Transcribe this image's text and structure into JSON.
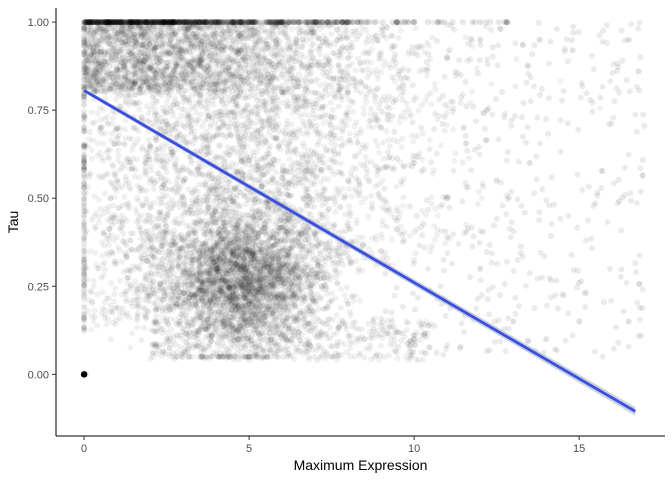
{
  "chart_data": {
    "type": "scatter",
    "title": "",
    "xlabel": "Maximum Expression",
    "ylabel": "Tau",
    "xlim": [
      -0.85,
      17.6
    ],
    "ylim": [
      -0.175,
      1.04
    ],
    "x_ticks": [
      0,
      5,
      10,
      15
    ],
    "x_tick_labels": [
      "0",
      "5",
      "10",
      "15"
    ],
    "y_ticks": [
      0,
      0.25,
      0.5,
      0.75,
      1
    ],
    "y_tick_labels": [
      "0.00",
      "0.25",
      "0.50",
      "0.75",
      "1.00"
    ],
    "grid": false,
    "legend": "none",
    "point_color": "#000000",
    "point_alpha": 0.06,
    "series": [
      {
        "points": [
          [
            0,
            1.0
          ],
          [
            0.2,
            1.0
          ],
          [
            0.5,
            1.0
          ],
          [
            1.0,
            1.0
          ],
          [
            2.0,
            1.0
          ],
          [
            3.0,
            1.0
          ],
          [
            4.5,
            1.0
          ],
          [
            6.0,
            1.0
          ],
          [
            8.0,
            1.0
          ],
          [
            10.0,
            1.0
          ],
          [
            12.0,
            1.0
          ],
          [
            12.8,
            1.0
          ],
          [
            0,
            0
          ],
          [
            0.05,
            0
          ],
          [
            0.3,
            0.8
          ],
          [
            1.0,
            0.85
          ],
          [
            2.5,
            0.8
          ],
          [
            4.0,
            0.8
          ],
          [
            6.0,
            0.8
          ],
          [
            8.0,
            0.8
          ],
          [
            4.5,
            0.25
          ],
          [
            5.0,
            0.2
          ],
          [
            5.5,
            0.15
          ],
          [
            4.0,
            0.3
          ],
          [
            3.5,
            0.35
          ],
          [
            6.0,
            0.22
          ],
          [
            5.0,
            0.35
          ],
          [
            4.2,
            0.15
          ],
          [
            2.5,
            0.4
          ],
          [
            3.0,
            0.55
          ],
          [
            2.0,
            0.65
          ],
          [
            1.5,
            0.7
          ],
          [
            7.0,
            0.4
          ],
          [
            8.0,
            0.55
          ],
          [
            9.0,
            0.7
          ],
          [
            10.0,
            0.6
          ],
          [
            11.0,
            0.5
          ],
          [
            12.0,
            0.3
          ],
          [
            13.0,
            0.15
          ],
          [
            14.0,
            0.1
          ],
          [
            15.0,
            0.15
          ],
          [
            16.5,
            0.15
          ],
          [
            16.8,
            0.86
          ],
          [
            16.5,
            0.95
          ],
          [
            14.8,
            0.92
          ],
          [
            13.8,
            0.95
          ],
          [
            11.5,
            0.7
          ],
          [
            12.5,
            0.55
          ],
          [
            9.5,
            0.12
          ],
          [
            10.0,
            0.1
          ],
          [
            7.5,
            0.08
          ],
          [
            8.5,
            0.1
          ],
          [
            1.0,
            0.55
          ],
          [
            0.5,
            0.7
          ],
          [
            0.8,
            0.5
          ],
          [
            3.2,
            0.12
          ],
          [
            2.8,
            0.2
          ],
          [
            6.5,
            0.12
          ],
          [
            7.2,
            0.25
          ],
          [
            12.2,
            0.75
          ],
          [
            13.5,
            0.6
          ],
          [
            9.0,
            0.35
          ],
          [
            8.0,
            0.2
          ],
          [
            2.2,
            0.9
          ],
          [
            11.0,
            0.9
          ],
          [
            12.0,
            0.95
          ]
        ]
      }
    ],
    "trend_line": {
      "color": "#3a4fe0",
      "ribbon_color": "#a9b2c8",
      "x": [
        0,
        16.7
      ],
      "y": [
        0.806,
        -0.105
      ]
    }
  }
}
